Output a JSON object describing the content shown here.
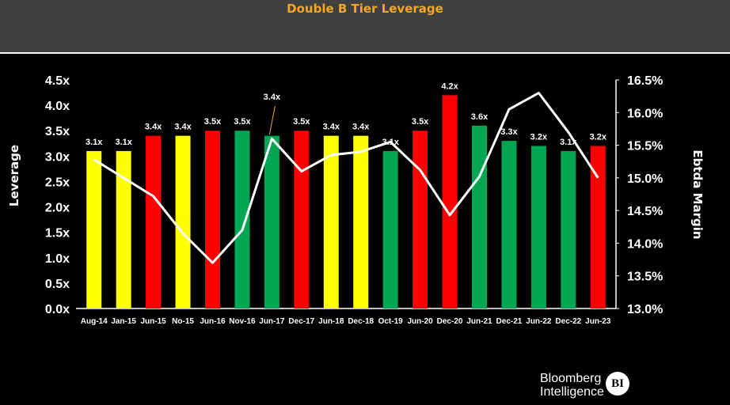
{
  "chart_data": {
    "type": "bar",
    "title": "Double B Tier Leverage",
    "categories": [
      "Aug-14",
      "Jan-15",
      "Jun-15",
      "No-15",
      "Jun-16",
      "Nov-16",
      "Jun-17",
      "Dec-17",
      "Jun-18",
      "Dec-18",
      "Oct-19",
      "Jun-20",
      "Dec-20",
      "Jun-21",
      "Dec-21",
      "Jun-22",
      "Dec-22",
      "Jun-23"
    ],
    "series": [
      {
        "type": "bar",
        "axis": "left",
        "values": [
          3.1,
          3.1,
          3.4,
          3.4,
          3.5,
          3.5,
          3.4,
          3.5,
          3.4,
          3.4,
          3.1,
          3.5,
          4.2,
          3.6,
          3.3,
          3.2,
          3.1,
          3.2
        ],
        "value_labels": [
          "3.1x",
          "3.1x",
          "3.4x",
          "3.4x",
          "3.5x",
          "3.5x",
          "3.4x",
          "3.5x",
          "3.4x",
          "3.4x",
          "3.1x",
          "3.5x",
          "4.2x",
          "3.6x",
          "3.3x",
          "3.2x",
          "3.1x",
          "3.2x"
        ],
        "colors": [
          "#ffff00",
          "#ffff00",
          "#ff0000",
          "#ffff00",
          "#ff0000",
          "#00a651",
          "#00a651",
          "#ff0000",
          "#ffff00",
          "#ffff00",
          "#00a651",
          "#ff0000",
          "#ff0000",
          "#00a651",
          "#00a651",
          "#00a651",
          "#00a651",
          "#ff0000"
        ]
      },
      {
        "type": "line",
        "axis": "right",
        "color": "#ffffff",
        "values": [
          15.28,
          15.0,
          14.72,
          14.15,
          13.7,
          14.2,
          15.6,
          15.1,
          15.35,
          15.4,
          15.55,
          15.12,
          14.43,
          15.02,
          16.05,
          16.3,
          15.7,
          15.0
        ]
      }
    ],
    "ylabel": "Leverage",
    "y2label": "Ebtda Margin",
    "ylim": [
      0,
      4.5
    ],
    "y2lim": [
      13.0,
      16.5
    ],
    "yticks": [
      "0.0x",
      "0.5x",
      "1.0x",
      "1.5x",
      "2.0x",
      "2.5x",
      "3.0x",
      "3.5x",
      "4.0x",
      "4.5x"
    ],
    "y2ticks": [
      "13.0%",
      "13.5%",
      "14.0%",
      "14.5%",
      "15.0%",
      "15.5%",
      "16.0%",
      "16.5%"
    ],
    "grid": false,
    "legend": "none"
  },
  "brand": {
    "line1": "Bloomberg",
    "line2": "Intelligence",
    "badge": "BI"
  }
}
